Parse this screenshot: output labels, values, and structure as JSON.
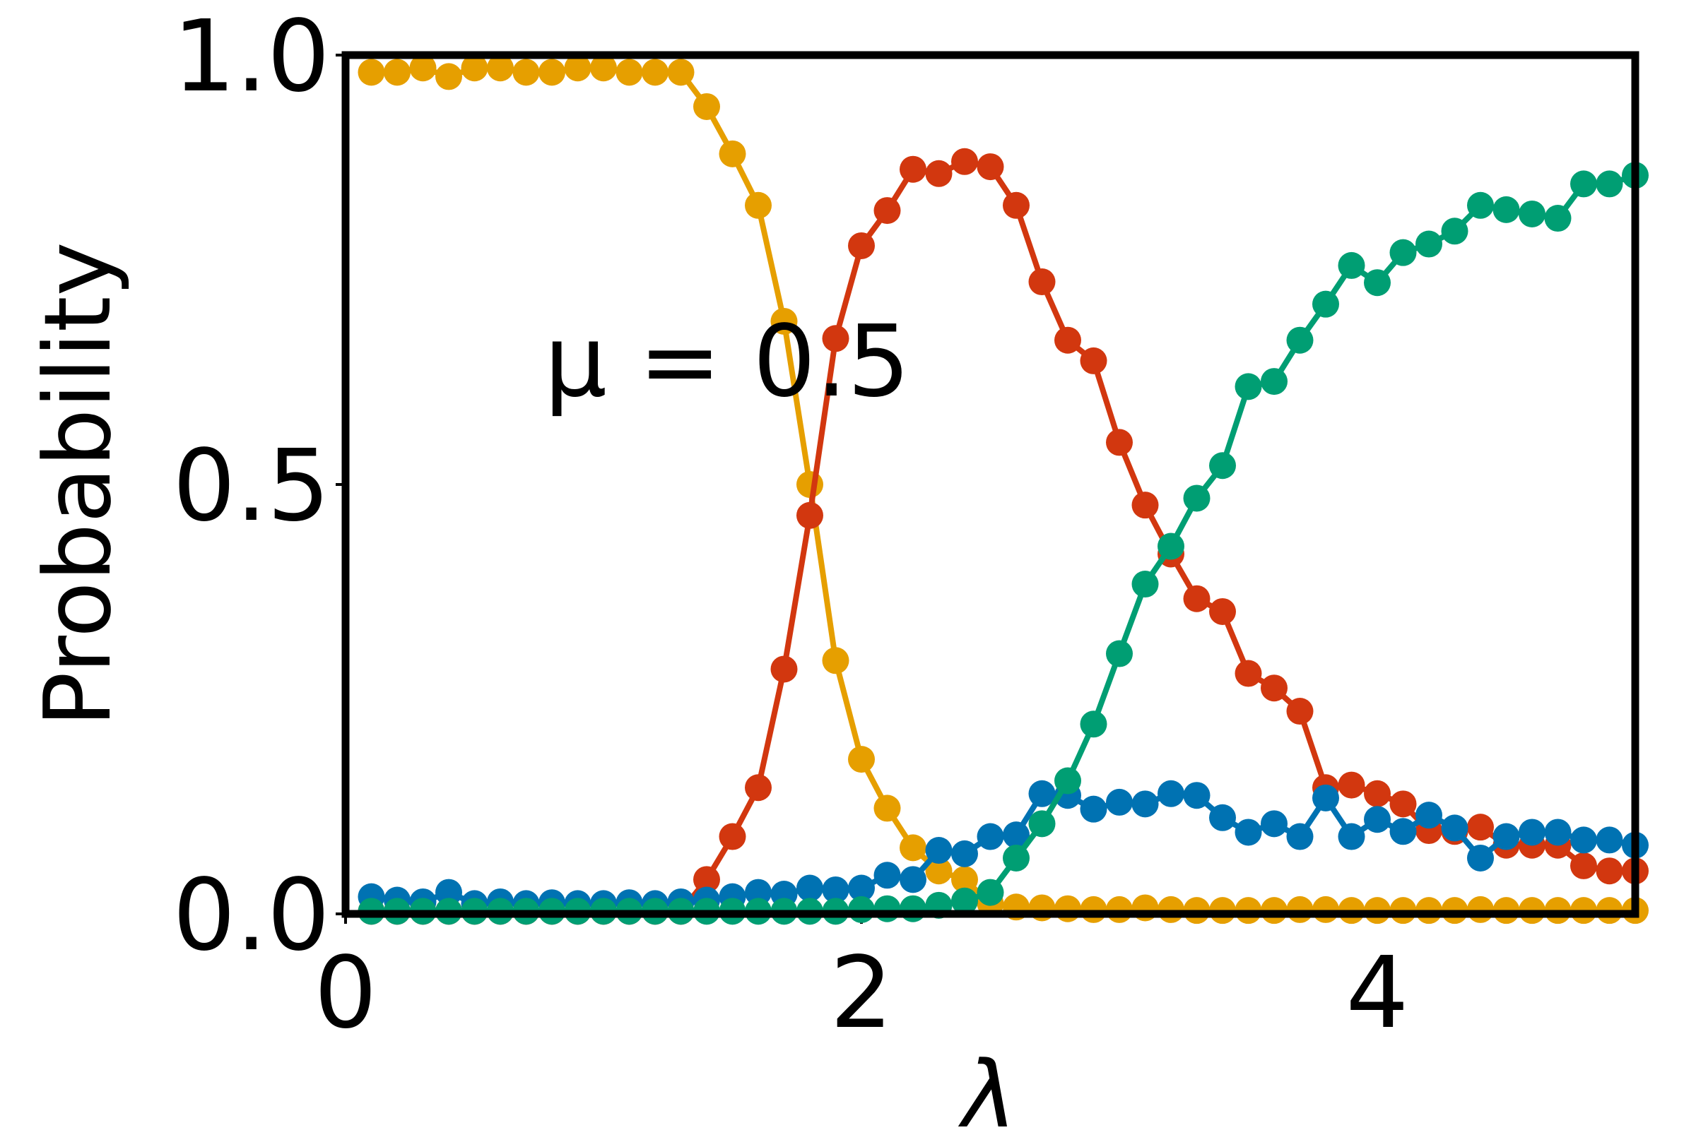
{
  "chart_data": {
    "type": "line",
    "annotation": "μ = 0.5",
    "x_label": "λ",
    "y_label": "Probability",
    "xlim": [
      0,
      5
    ],
    "ylim": [
      0,
      1
    ],
    "xticks": [
      0,
      2,
      4
    ],
    "yticks": [
      {
        "value": 0,
        "label": "0.0"
      },
      {
        "value": 0.5,
        "label": "0.5"
      },
      {
        "value": 1,
        "label": "1.0"
      }
    ],
    "x": [
      0.1,
      0.2,
      0.3,
      0.4,
      0.5,
      0.6,
      0.7,
      0.8,
      0.9,
      1.0,
      1.1,
      1.2,
      1.3,
      1.4,
      1.5,
      1.6,
      1.7,
      1.8,
      1.9,
      2.0,
      2.1,
      2.2,
      2.3,
      2.4,
      2.5,
      2.6,
      2.7,
      2.8,
      2.9,
      3.0,
      3.1,
      3.2,
      3.3,
      3.4,
      3.5,
      3.6,
      3.7,
      3.8,
      3.9,
      4.0,
      4.1,
      4.2,
      4.3,
      4.4,
      4.5,
      4.6,
      4.7,
      4.8,
      4.9,
      5.0
    ],
    "series": [
      {
        "color": "#e69f00",
        "values": [
          0.98,
          0.98,
          0.985,
          0.975,
          0.985,
          0.985,
          0.98,
          0.98,
          0.985,
          0.985,
          0.98,
          0.98,
          0.98,
          0.94,
          0.885,
          0.825,
          0.69,
          0.5,
          0.295,
          0.18,
          0.123,
          0.077,
          0.05,
          0.04,
          0.012,
          0.008,
          0.007,
          0.006,
          0.005,
          0.005,
          0.007,
          0.005,
          0.004,
          0.004,
          0.004,
          0.004,
          0.005,
          0.005,
          0.004,
          0.004,
          0.004,
          0.004,
          0.004,
          0.005,
          0.004,
          0.004,
          0.004,
          0.004,
          0.004,
          0.004
        ]
      },
      {
        "color": "#d2370f",
        "values": [
          0.003,
          0.003,
          0.003,
          0.003,
          0.003,
          0.003,
          0.003,
          0.003,
          0.003,
          0.003,
          0.003,
          0.003,
          0.003,
          0.04,
          0.09,
          0.147,
          0.285,
          0.464,
          0.67,
          0.778,
          0.819,
          0.867,
          0.862,
          0.876,
          0.87,
          0.825,
          0.736,
          0.668,
          0.644,
          0.549,
          0.476,
          0.419,
          0.367,
          0.352,
          0.28,
          0.263,
          0.236,
          0.147,
          0.15,
          0.14,
          0.128,
          0.097,
          0.096,
          0.101,
          0.08,
          0.08,
          0.08,
          0.056,
          0.05,
          0.05
        ]
      },
      {
        "color": "#0072b2",
        "values": [
          0.02,
          0.016,
          0.014,
          0.025,
          0.012,
          0.014,
          0.012,
          0.013,
          0.012,
          0.012,
          0.013,
          0.012,
          0.014,
          0.016,
          0.02,
          0.025,
          0.023,
          0.03,
          0.028,
          0.03,
          0.045,
          0.04,
          0.074,
          0.07,
          0.09,
          0.092,
          0.14,
          0.138,
          0.122,
          0.13,
          0.128,
          0.14,
          0.138,
          0.112,
          0.095,
          0.105,
          0.09,
          0.135,
          0.09,
          0.11,
          0.096,
          0.115,
          0.1,
          0.065,
          0.09,
          0.095,
          0.095,
          0.086,
          0.086,
          0.08
        ]
      },
      {
        "color": "#009e73",
        "values": [
          0.003,
          0.003,
          0.003,
          0.003,
          0.003,
          0.003,
          0.003,
          0.003,
          0.003,
          0.003,
          0.003,
          0.003,
          0.003,
          0.003,
          0.003,
          0.003,
          0.003,
          0.003,
          0.003,
          0.005,
          0.006,
          0.006,
          0.01,
          0.015,
          0.025,
          0.065,
          0.105,
          0.155,
          0.221,
          0.303,
          0.384,
          0.428,
          0.484,
          0.522,
          0.614,
          0.62,
          0.668,
          0.71,
          0.755,
          0.735,
          0.77,
          0.78,
          0.795,
          0.825,
          0.82,
          0.815,
          0.81,
          0.85,
          0.85,
          0.86
        ]
      }
    ]
  }
}
